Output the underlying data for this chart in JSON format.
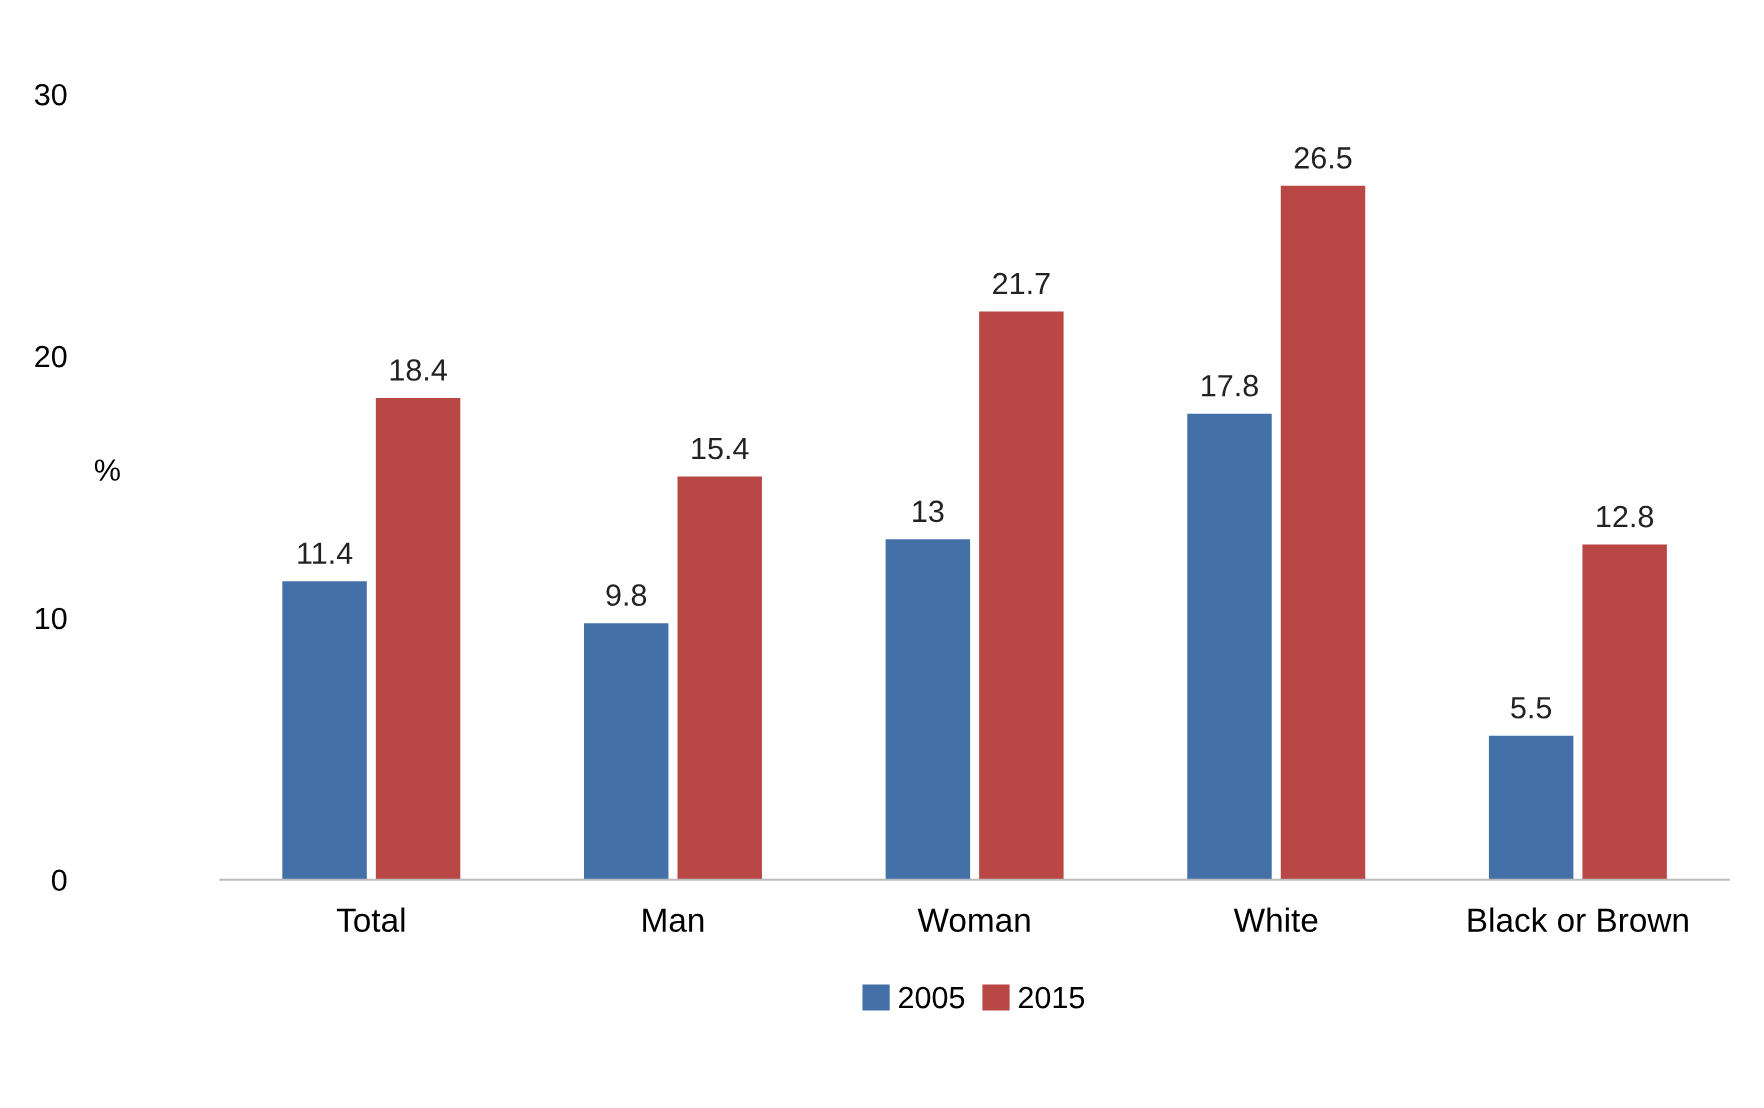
{
  "chart_data": {
    "type": "bar",
    "ylabel": "%",
    "categories": [
      "Total",
      "Man",
      "Woman",
      "White",
      "Black or Brown"
    ],
    "series": [
      {
        "name": "2005",
        "color": "#4470a8",
        "values": [
          11.4,
          9.8,
          13,
          17.8,
          5.5
        ]
      },
      {
        "name": "2015",
        "color": "#b84745",
        "values": [
          18.4,
          15.4,
          21.7,
          26.5,
          12.8
        ]
      }
    ],
    "ylim": [
      0,
      30
    ],
    "yticks": [
      0,
      10,
      20,
      30
    ],
    "grid": false,
    "legend": "bottom",
    "data_labels": true
  }
}
